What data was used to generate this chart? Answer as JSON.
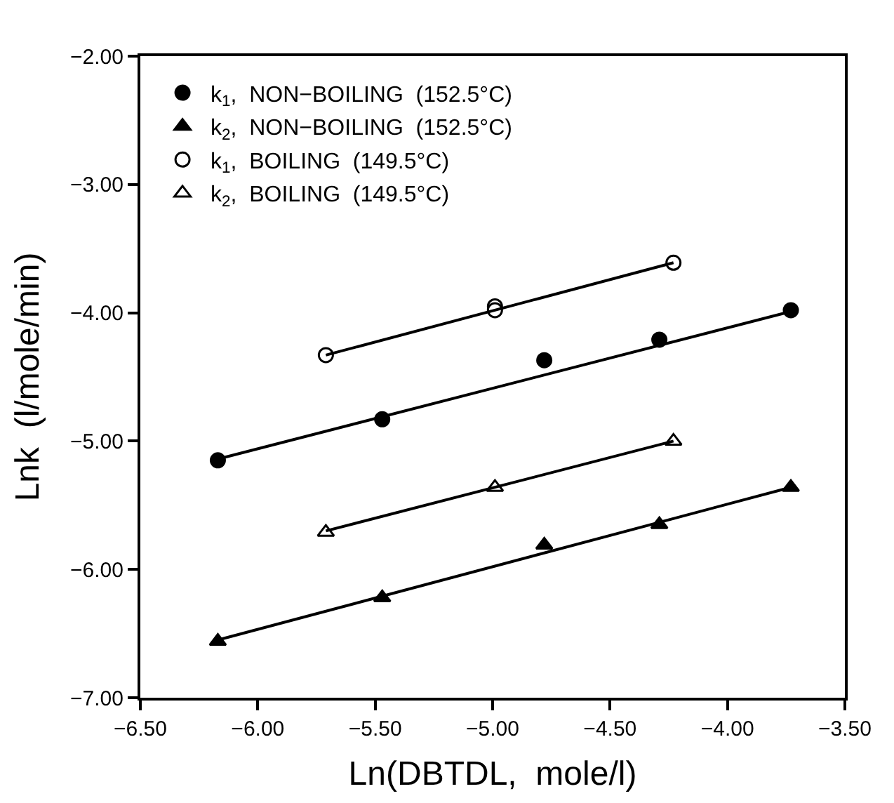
{
  "chart_data": {
    "type": "scatter",
    "xlabel": "Ln(DBTDL,  mole/l)",
    "ylabel": "Lnk  (l/mole/min)",
    "series": [
      {
        "name": "k$_{1}$,  NON−BOILING  (152.5°C)",
        "color": "#000000",
        "marker": "circle",
        "x": [
          -6.17,
          -5.47,
          -4.78,
          -4.29,
          -3.73
        ],
        "values": [
          -5.15,
          -4.83,
          -4.37,
          -4.21,
          -3.98
        ]
      },
      {
        "name": "k$_{2}$,  NON−BOILING  (152.5°C)",
        "color": "#000000",
        "marker": "triangle",
        "x": [
          -6.17,
          -5.47,
          -4.78,
          -4.29,
          -3.73
        ],
        "values": [
          -6.56,
          -6.22,
          -5.81,
          -5.65,
          -5.36
        ]
      },
      {
        "name": "k$_{1}$,  BOILING  (149.5°C)",
        "color": "#ffffff",
        "marker": "circle",
        "x": [
          -5.71,
          -4.99,
          -4.99,
          -4.23
        ],
        "values": [
          -4.33,
          -3.95,
          -3.98,
          -3.61
        ]
      },
      {
        "name": "k$_{2}$,  BOILING  (149.5°C)",
        "color": "#ffffff",
        "marker": "triangle",
        "x": [
          -5.71,
          -4.99,
          -4.23
        ],
        "values": [
          -5.71,
          -5.36,
          -5.0
        ]
      },
      {
        "type": "line",
        "color": "#000000",
        "x": [
          -6.17,
          -3.73
        ],
        "values": [
          -5.14,
          -3.99
        ]
      },
      {
        "type": "line",
        "color": "#000000",
        "x": [
          -6.17,
          -3.73
        ],
        "values": [
          -6.55,
          -5.36
        ]
      },
      {
        "type": "line",
        "color": "#000000",
        "x": [
          -5.71,
          -4.23
        ],
        "values": [
          -4.33,
          -3.61
        ]
      },
      {
        "type": "line",
        "color": "#000000",
        "x": [
          -5.71,
          -4.23
        ],
        "values": [
          -5.7,
          -5.0
        ]
      }
    ],
    "xlim": [
      -6.5,
      -3.5
    ],
    "xticks": [
      {
        "value": -6.5,
        "label": "−6.50"
      },
      {
        "value": -6.0,
        "label": "−6.00"
      },
      {
        "value": -5.5,
        "label": "−5.50"
      },
      {
        "value": -5.0,
        "label": "−5.00"
      },
      {
        "value": -4.5,
        "label": "−4.50"
      },
      {
        "value": -4.0,
        "label": "−4.00"
      },
      {
        "value": -3.5,
        "label": "−3.50"
      }
    ],
    "ylim": [
      -7,
      -2
    ],
    "yticks": [
      {
        "value": -7,
        "label": "−7.00"
      },
      {
        "value": -6,
        "label": "−6.00"
      },
      {
        "value": -5,
        "label": "−5.00"
      },
      {
        "value": -4,
        "label": "−4.00"
      },
      {
        "value": -3,
        "label": "−3.00"
      },
      {
        "value": -2,
        "label": "−2.00"
      }
    ],
    "legend": "top left",
    "line_style": "solid"
  }
}
